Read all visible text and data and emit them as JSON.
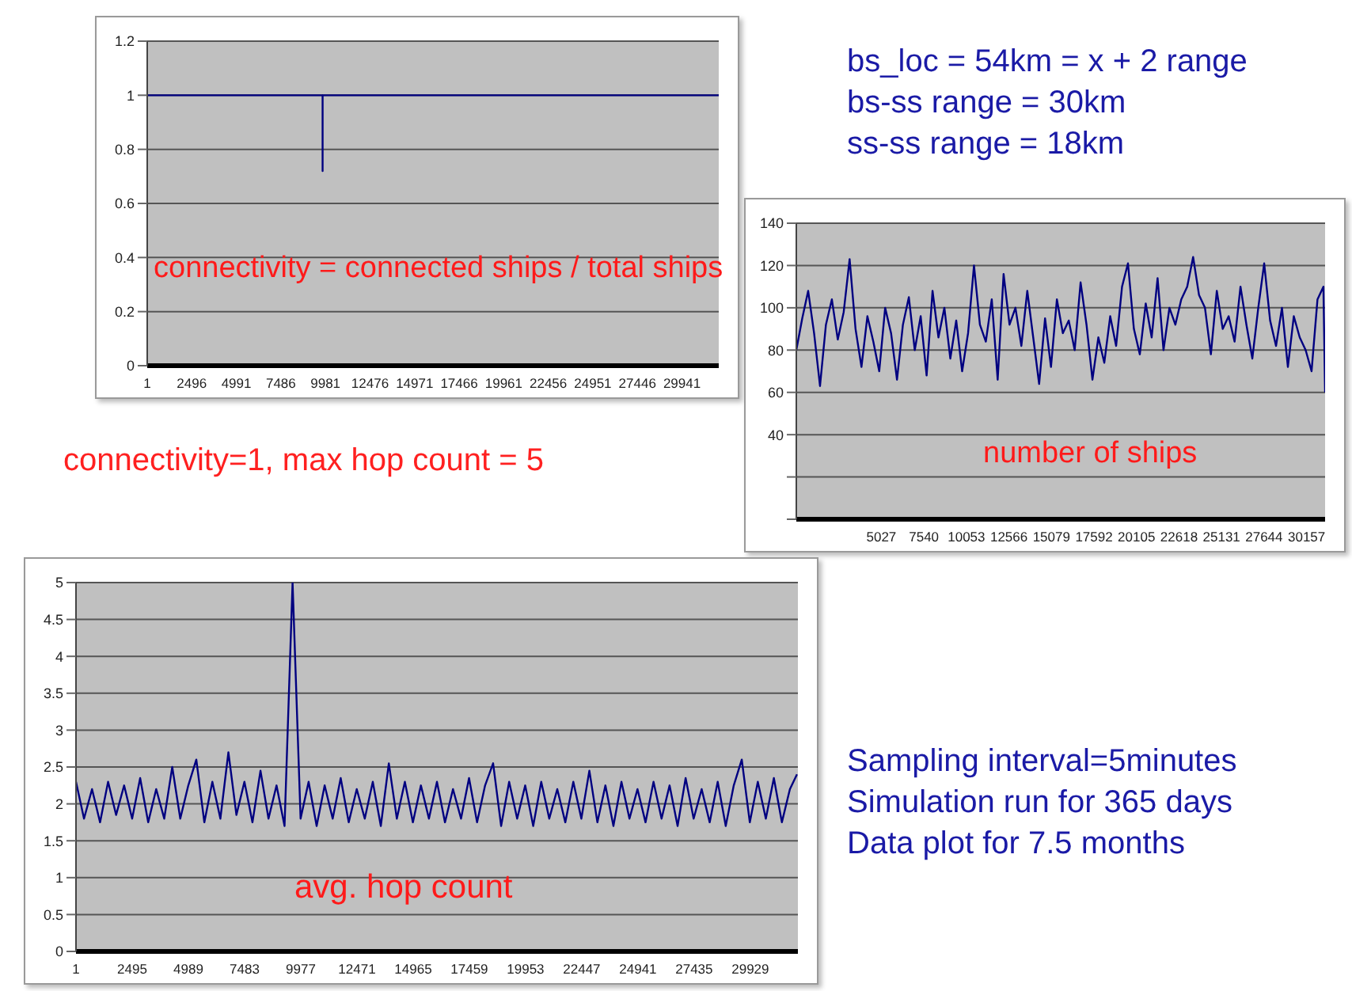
{
  "chart_data": [
    {
      "type": "line",
      "color": "#000080",
      "annotations": [
        "connectivity = connected ships / total ships"
      ],
      "grid": "y",
      "xlim": [
        1,
        32000
      ],
      "ylim": [
        0,
        1.2
      ],
      "yticks": [
        0,
        0.2,
        0.4,
        0.6,
        0.8,
        1,
        1.2
      ],
      "xticks": [
        1,
        2496,
        4991,
        7486,
        9981,
        12476,
        14971,
        17466,
        19961,
        22456,
        24951,
        27446,
        29941
      ],
      "x": [
        1,
        9819,
        9820,
        9821,
        32000
      ],
      "values": [
        1,
        1,
        0.72,
        1,
        1
      ]
    },
    {
      "type": "line",
      "color": "#000080",
      "annotations": [
        "number of ships"
      ],
      "grid": "y",
      "xlim": [
        1,
        31250
      ],
      "ylim": [
        0,
        140
      ],
      "yticks": [
        {
          "value": 0,
          "label": null
        },
        {
          "value": 20,
          "label": null
        },
        40,
        60,
        80,
        100,
        120,
        140
      ],
      "xticks": [
        5027,
        7540,
        10053,
        12566,
        15079,
        17592,
        20105,
        22618,
        25131,
        27644,
        30157
      ],
      "x": [
        1,
        351,
        701,
        1051,
        1401,
        1751,
        2101,
        2451,
        2801,
        3151,
        3501,
        3851,
        4201,
        4551,
        4901,
        5251,
        5601,
        5951,
        6301,
        6651,
        7001,
        7351,
        7701,
        8051,
        8401,
        8751,
        9101,
        9451,
        9801,
        10151,
        10501,
        10851,
        11201,
        11551,
        11901,
        12251,
        12601,
        12951,
        13301,
        13651,
        14001,
        14351,
        14701,
        15051,
        15401,
        15751,
        16101,
        16451,
        16801,
        17151,
        17501,
        17851,
        18201,
        18551,
        18901,
        19251,
        19601,
        19951,
        20301,
        20651,
        21001,
        21351,
        21701,
        22051,
        22401,
        22751,
        23101,
        23451,
        23801,
        24151,
        24501,
        24851,
        25201,
        25551,
        25901,
        26251,
        26601,
        26951,
        27301,
        27651,
        28001,
        28351,
        28701,
        29051,
        29401,
        29751,
        30101,
        30451,
        30801,
        31151,
        31250
      ],
      "values": [
        80,
        95,
        108,
        88,
        63,
        92,
        104,
        85,
        98,
        123,
        90,
        72,
        96,
        84,
        70,
        100,
        88,
        66,
        92,
        105,
        80,
        96,
        68,
        108,
        86,
        100,
        76,
        94,
        70,
        88,
        120,
        92,
        84,
        104,
        66,
        116,
        92,
        100,
        82,
        108,
        86,
        64,
        95,
        72,
        104,
        88,
        94,
        80,
        112,
        92,
        66,
        86,
        74,
        96,
        82,
        110,
        121,
        90,
        78,
        102,
        86,
        114,
        80,
        100,
        92,
        104,
        110,
        124,
        106,
        100,
        78,
        108,
        90,
        96,
        84,
        110,
        92,
        76,
        100,
        121,
        94,
        82,
        100,
        72,
        96,
        86,
        80,
        70,
        104,
        110,
        60
      ]
    },
    {
      "type": "line",
      "color": "#000080",
      "annotations": [
        "avg. hop count"
      ],
      "grid": "y",
      "xlim": [
        1,
        32040
      ],
      "ylim": [
        0,
        5
      ],
      "yticks": [
        0,
        0.5,
        1,
        1.5,
        2,
        2.5,
        3,
        3.5,
        4,
        4.5,
        5
      ],
      "xticks": [
        1,
        2495,
        4989,
        7483,
        9977,
        12471,
        14965,
        17459,
        19953,
        22447,
        24941,
        27435,
        29929
      ],
      "x": [
        1,
        357,
        713,
        1069,
        1425,
        1781,
        2137,
        2493,
        2849,
        3205,
        3561,
        3917,
        4273,
        4629,
        4985,
        5341,
        5697,
        6053,
        6409,
        6765,
        7121,
        7477,
        7833,
        8189,
        8545,
        8901,
        9257,
        9613,
        9969,
        10325,
        10681,
        11037,
        11393,
        11749,
        12105,
        12461,
        12817,
        13173,
        13529,
        13885,
        14241,
        14597,
        14953,
        15309,
        15665,
        16021,
        16377,
        16733,
        17089,
        17445,
        17801,
        18157,
        18513,
        18869,
        19225,
        19581,
        19937,
        20293,
        20649,
        21005,
        21361,
        21717,
        22073,
        22429,
        22785,
        23141,
        23497,
        23853,
        24209,
        24565,
        24921,
        25277,
        25633,
        25989,
        26345,
        26701,
        27057,
        27413,
        27769,
        28125,
        28481,
        28837,
        29193,
        29549,
        29905,
        30261,
        30617,
        30973,
        31329,
        31685,
        32000
      ],
      "values": [
        2.3,
        1.8,
        2.2,
        1.75,
        2.3,
        1.85,
        2.25,
        1.8,
        2.35,
        1.75,
        2.2,
        1.8,
        2.5,
        1.8,
        2.25,
        2.6,
        1.75,
        2.3,
        1.8,
        2.7,
        1.85,
        2.3,
        1.75,
        2.45,
        1.8,
        2.25,
        1.7,
        5,
        1.8,
        2.3,
        1.7,
        2.25,
        1.8,
        2.35,
        1.75,
        2.2,
        1.8,
        2.3,
        1.7,
        2.55,
        1.8,
        2.3,
        1.75,
        2.25,
        1.8,
        2.3,
        1.75,
        2.2,
        1.8,
        2.35,
        1.75,
        2.25,
        2.55,
        1.7,
        2.3,
        1.8,
        2.25,
        1.7,
        2.3,
        1.8,
        2.2,
        1.75,
        2.3,
        1.8,
        2.45,
        1.75,
        2.25,
        1.7,
        2.3,
        1.8,
        2.2,
        1.75,
        2.3,
        1.8,
        2.25,
        1.7,
        2.35,
        1.8,
        2.2,
        1.75,
        2.3,
        1.7,
        2.25,
        2.6,
        1.75,
        2.3,
        1.8,
        2.35,
        1.75,
        2.2,
        2.4
      ]
    },
    {
      "type": "other",
      "annotations": [
        "bs_loc = 54km = x + 2 range",
        "bs-ss range = 30km",
        "ss-ss range = 18km",
        "connectivity=1, max hop count = 5",
        "Sampling interval=5minutes",
        "Simulation run for 365 days",
        "Data plot for 7.5 months"
      ]
    }
  ]
}
